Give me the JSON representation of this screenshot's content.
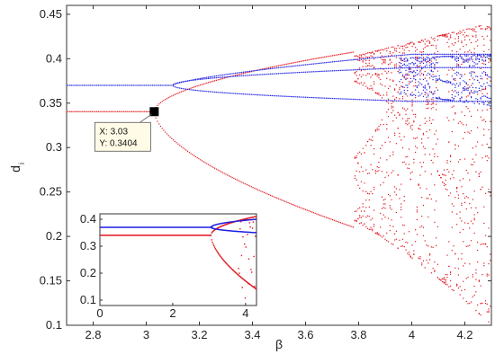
{
  "chart_data": {
    "type": "scatter",
    "title": "",
    "xlabel": "β",
    "ylabel": "d",
    "ylabel_subscript": "i",
    "xlim": [
      2.7,
      4.3
    ],
    "ylim": [
      0.1,
      0.46
    ],
    "xticks": [
      "2.8",
      "3",
      "3.2",
      "3.4",
      "3.6",
      "3.8",
      "4",
      "4.2"
    ],
    "xtick_values": [
      2.8,
      3.0,
      3.2,
      3.4,
      3.6,
      3.8,
      4.0,
      4.2
    ],
    "yticks": [
      "0.1",
      "0.15",
      "0.2",
      "0.25",
      "0.3",
      "0.35",
      "0.4",
      "0.45"
    ],
    "ytick_values": [
      0.1,
      0.15,
      0.2,
      0.25,
      0.3,
      0.35,
      0.4,
      0.45
    ],
    "grid": false,
    "series": [
      {
        "color": "#e0141b",
        "description_points": [
          [
            2.7,
            0.3404
          ],
          [
            3.0,
            0.3404
          ],
          [
            3.03,
            0.3404
          ],
          [
            3.06,
            0.325
          ],
          [
            3.1,
            0.314
          ],
          [
            3.2,
            0.3
          ],
          [
            3.4,
            0.26
          ],
          [
            3.6,
            0.232
          ],
          [
            3.78,
            0.21
          ],
          [
            3.8,
            0.2
          ],
          [
            3.85,
            0.18
          ],
          [
            3.92,
            0.167
          ],
          [
            4.0,
            0.13
          ]
        ]
      },
      {
        "color": "#1d1de0",
        "description_points": [
          [
            2.7,
            0.37
          ],
          [
            3.1,
            0.37
          ],
          [
            3.2,
            0.38
          ],
          [
            3.4,
            0.39
          ],
          [
            3.6,
            0.4
          ],
          [
            3.8,
            0.41
          ],
          [
            4.0,
            0.42
          ],
          [
            4.3,
            0.43
          ]
        ]
      }
    ],
    "datatip": {
      "x_text": "X: 3.03",
      "y_text": "Y: 0.3404",
      "x": 3.03,
      "y": 0.3404
    },
    "inset": {
      "xlim": [
        0,
        4.3
      ],
      "ylim": [
        0.08,
        0.42
      ],
      "xticks": [
        "0",
        "2",
        "4"
      ],
      "xtick_values": [
        0,
        2,
        4
      ],
      "yticks": [
        "0.1",
        "0.2",
        "0.3",
        "0.4"
      ],
      "ytick_values": [
        0.1,
        0.2,
        0.3,
        0.4
      ],
      "red_level": 0.3404,
      "blue_level": 0.37
    }
  }
}
